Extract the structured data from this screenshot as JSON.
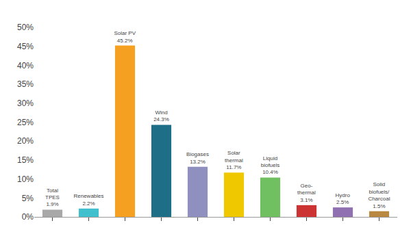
{
  "chart_data": {
    "type": "bar",
    "categories": [
      "Total\nTPES",
      "Renewables",
      "Solar PV",
      "Wind",
      "Biogases",
      "Solar\nthermal",
      "Liquid\nbiofuels",
      "Geo-\nthermal",
      "Hydro",
      "Solid\nbiofuels/\nCharcoal"
    ],
    "values": [
      1.9,
      2.2,
      45.2,
      24.3,
      13.2,
      11.7,
      10.4,
      3.1,
      2.5,
      1.5
    ],
    "value_labels": [
      "1.9%",
      "2.2%",
      "45.2%",
      "24.3%",
      "13.2%",
      "11.7%",
      "10.4%",
      "3.1%",
      "2.5%",
      "1.5%"
    ],
    "data_labels": true,
    "colors": [
      "#a8a8a8",
      "#40c0cc",
      "#f5a020",
      "#1e6e88",
      "#9090c0",
      "#f0c800",
      "#70bf60",
      "#cc3333",
      "#9070b0",
      "#b88840"
    ],
    "ylim": [
      0,
      50
    ],
    "yticks": [
      {
        "value": 0,
        "label": "0%"
      },
      {
        "value": 5,
        "label": "5%"
      },
      {
        "value": 10,
        "label": "10%"
      },
      {
        "value": 15,
        "label": "15%"
      },
      {
        "value": 20,
        "label": "20%"
      },
      {
        "value": 25,
        "label": "25%"
      },
      {
        "value": 30,
        "label": "30%"
      },
      {
        "value": 35,
        "label": "35%"
      },
      {
        "value": 40,
        "label": "40%"
      },
      {
        "value": 45,
        "label": "45%"
      },
      {
        "value": 50,
        "label": "50%"
      }
    ],
    "tick_labels": "y",
    "grid": false
  }
}
